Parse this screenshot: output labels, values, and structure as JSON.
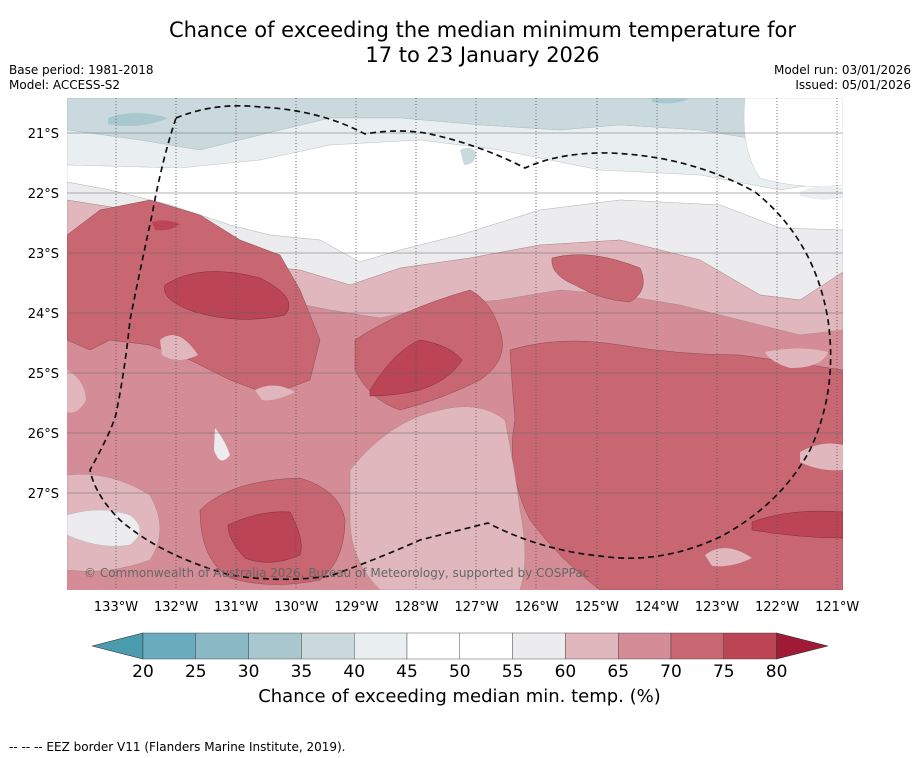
{
  "title": {
    "line1": "Chance of exceeding the median minimum temperature for",
    "line2": "17 to 23 January 2026"
  },
  "meta": {
    "base_period": "Base period: 1981-2018",
    "model": "Model: ACCESS-S2",
    "model_run": "Model run: 03/01/2026",
    "issued": "Issued: 05/01/2026"
  },
  "map": {
    "lat_labels": [
      "21°S",
      "22°S",
      "23°S",
      "24°S",
      "25°S",
      "26°S",
      "27°S"
    ],
    "lon_labels": [
      "133°W",
      "132°W",
      "131°W",
      "130°W",
      "129°W",
      "128°W",
      "127°W",
      "126°W",
      "125°W",
      "124°W",
      "123°W",
      "122°W",
      "121°W"
    ],
    "copyright": "© Commonwealth of Australia 2026, Bureau of Meteorology, supported by COSPPac"
  },
  "colorbar": {
    "ticks": [
      "20",
      "25",
      "30",
      "35",
      "40",
      "45",
      "50",
      "55",
      "60",
      "65",
      "70",
      "75",
      "80"
    ],
    "colors": {
      "under": "#4a9cae",
      "c20_25": "#6aabbd",
      "c25_30": "#8ab8c5",
      "c30_35": "#a9c7ce",
      "c35_40": "#cad9dd",
      "c40_45": "#e9eff1",
      "c45_50": "#ffffff",
      "c50_55": "#ffffff",
      "c55_60": "#ecebed",
      "c60_65": "#e0b7bd",
      "c65_70": "#d48d96",
      "c70_75": "#c86772",
      "c75_80": "#bb4455",
      "over": "#a01a35"
    },
    "title": "Chance of exceeding median min. temp. (%)"
  },
  "footnote": "--  --  -- EEZ border V11 (Flanders Marine Institute, 2019)."
}
